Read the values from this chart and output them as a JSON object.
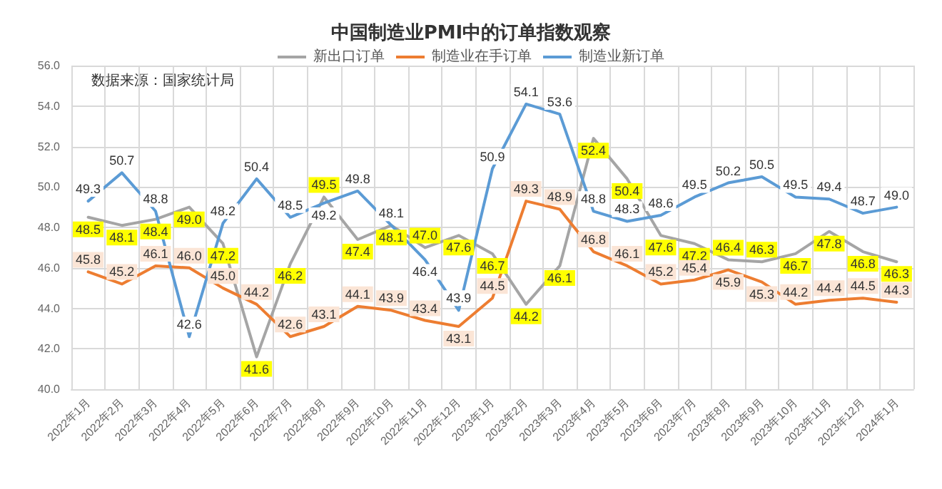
{
  "chart_data": {
    "type": "line",
    "title": "中国制造业PMI中的订单指数观察",
    "annotations": [
      "数据来源：国家统计局"
    ],
    "categories": [
      "2022年1月",
      "2022年2月",
      "2022年3月",
      "2022年4月",
      "2022年5月",
      "2022年6月",
      "2022年7月",
      "2022年8月",
      "2022年9月",
      "2022年10月",
      "2022年11月",
      "2022年12月",
      "2023年1月",
      "2023年2月",
      "2023年3月",
      "2023年4月",
      "2023年5月",
      "2023年6月",
      "2023年7月",
      "2023年8月",
      "2023年9月",
      "2023年10月",
      "2023年11月",
      "2023年12月",
      "2024年1月"
    ],
    "series": [
      {
        "name": "新出口订单",
        "color": "#a5a5a5",
        "values": [
          48.5,
          48.1,
          48.4,
          49.0,
          47.2,
          41.6,
          46.2,
          49.5,
          47.4,
          48.1,
          47.0,
          47.6,
          46.7,
          44.2,
          46.1,
          52.4,
          50.4,
          47.6,
          47.2,
          46.4,
          46.3,
          46.7,
          47.8,
          46.8,
          46.3
        ],
        "value_labels": [
          "48.5",
          "48.1",
          "48.4",
          "49.0",
          "47.2",
          "41.6",
          "46.2",
          "49.5",
          "47.4",
          "48.1",
          "47.0",
          "47.6",
          "46.7",
          "44.2",
          "46.1",
          "52.4",
          "50.4",
          "47.6",
          "47.2",
          "46.4",
          "46.3",
          "46.7",
          "47.8",
          "46.8",
          "46.3"
        ]
      },
      {
        "name": "制造业在手订单",
        "color": "#ed7d31",
        "values": [
          45.8,
          45.2,
          46.1,
          46.0,
          45.0,
          44.2,
          42.6,
          43.1,
          44.1,
          43.9,
          43.4,
          43.1,
          44.5,
          49.3,
          48.9,
          46.8,
          46.1,
          45.2,
          45.4,
          45.9,
          45.3,
          44.2,
          44.4,
          44.5,
          44.3
        ],
        "value_labels": [
          "45.8",
          "45.2",
          "46.1",
          "46.0",
          "45.0",
          "44.2",
          "42.6",
          "43.1",
          "44.1",
          "43.9",
          "43.4",
          "43.1",
          "44.5",
          "49.3",
          "48.9",
          "46.8",
          "46.1",
          "45.2",
          "45.4",
          "45.9",
          "45.3",
          "44.2",
          "44.4",
          "44.5",
          "44.3"
        ]
      },
      {
        "name": "制造业新订单",
        "color": "#5b9bd5",
        "values": [
          49.3,
          50.7,
          48.8,
          42.6,
          48.2,
          50.4,
          48.5,
          49.2,
          49.8,
          48.1,
          46.4,
          43.9,
          50.9,
          54.1,
          53.6,
          48.8,
          48.3,
          48.6,
          49.5,
          50.2,
          50.5,
          49.5,
          49.4,
          48.7,
          49.0
        ],
        "value_labels": [
          "49.3",
          "50.7",
          "48.8",
          "42.6",
          "48.2",
          "50.4",
          "48.5",
          "49.2",
          "49.8",
          "48.1",
          "46.4",
          "43.9",
          "50.9",
          "54.1",
          "53.6",
          "48.8",
          "48.3",
          "48.6",
          "49.5",
          "50.2",
          "50.5",
          "49.5",
          "49.4",
          "48.7",
          "49.0"
        ]
      }
    ],
    "ylim": [
      40,
      56
    ],
    "yticks": [
      {
        "value": 40,
        "label": "40.0"
      },
      {
        "value": 42,
        "label": "42.0"
      },
      {
        "value": 44,
        "label": "44.0"
      },
      {
        "value": 46,
        "label": "46.0"
      },
      {
        "value": 48,
        "label": "48.0"
      },
      {
        "value": 50,
        "label": "50.0"
      },
      {
        "value": 52,
        "label": "52.0"
      },
      {
        "value": 54,
        "label": "54.0"
      },
      {
        "value": 56,
        "label": "56.0"
      }
    ],
    "grid": true,
    "legend": "top",
    "marker": "none",
    "line_style": "solid"
  }
}
